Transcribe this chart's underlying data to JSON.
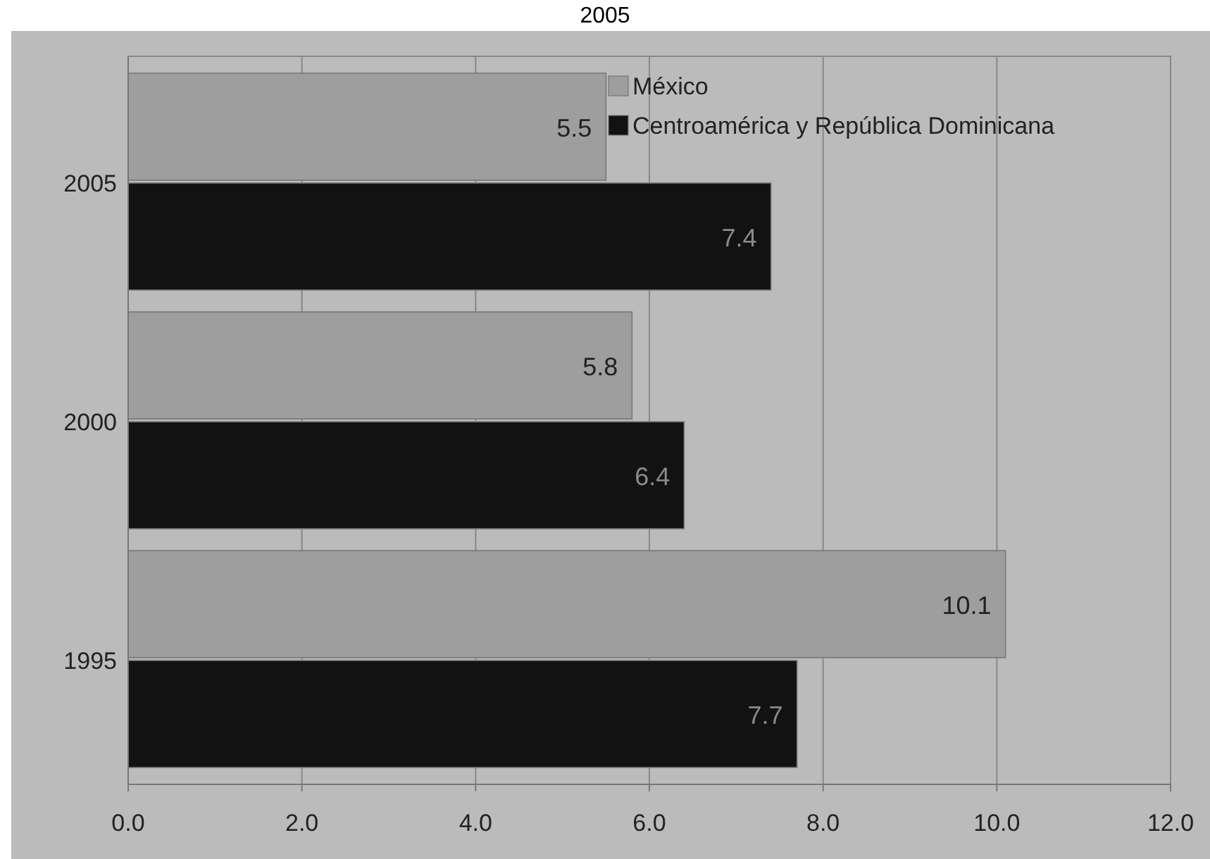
{
  "chart_data": {
    "type": "bar",
    "orientation": "horizontal",
    "title": "2005",
    "categories": [
      "2005",
      "2000",
      "1995"
    ],
    "series": [
      {
        "name": "México",
        "color": "#9e9e9e",
        "values": [
          5.5,
          5.8,
          10.1
        ]
      },
      {
        "name": "Centroamérica y República Dominicana",
        "color": "#121212",
        "values": [
          7.4,
          6.4,
          7.7
        ]
      }
    ],
    "xlim": [
      0,
      12
    ],
    "xticks": [
      {
        "value": 0,
        "label": "0.0"
      },
      {
        "value": 2,
        "label": "2.0"
      },
      {
        "value": 4,
        "label": "4.0"
      },
      {
        "value": 6,
        "label": "6.0"
      },
      {
        "value": 8,
        "label": "8.0"
      },
      {
        "value": 10,
        "label": "10.0"
      },
      {
        "value": 12,
        "label": "12.0"
      }
    ],
    "grid": "x",
    "legend": "top",
    "data_labels": true
  }
}
